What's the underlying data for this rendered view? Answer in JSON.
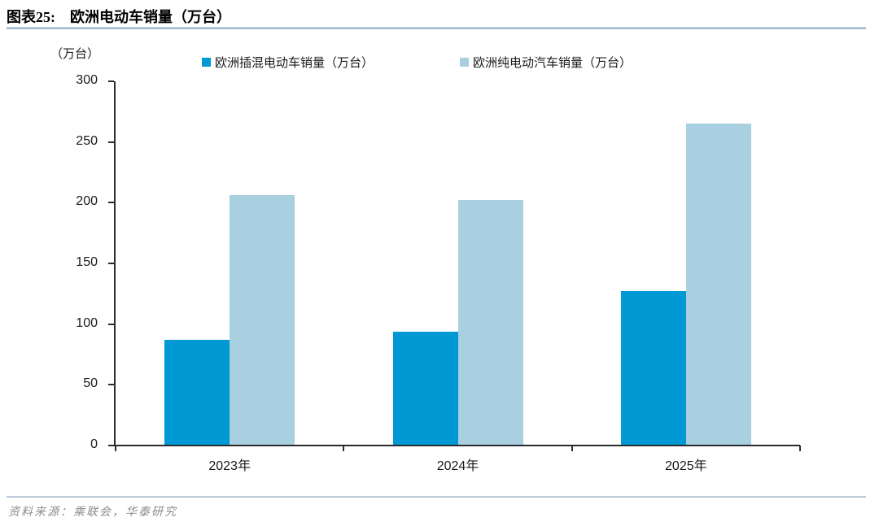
{
  "figure": {
    "label": "图表25:",
    "title": "欧洲电动车销量（万台）",
    "source": "资料来源：乘联会，华泰研究"
  },
  "chart_data": {
    "type": "bar",
    "title": "欧洲电动车销量（万台）",
    "categories": [
      "2023年",
      "2024年",
      "2025年"
    ],
    "series": [
      {
        "name": "欧洲插混电动车销量（万台）",
        "color": "#0099d3",
        "values": [
          87,
          94,
          127
        ]
      },
      {
        "name": "欧洲纯电动汽车销量（万台）",
        "color": "#a9d0e0",
        "values": [
          206,
          202,
          265
        ]
      }
    ],
    "xlabel": "",
    "ylabel": "（万台）",
    "ylim": [
      0,
      300
    ],
    "ytick_step": 50,
    "grid": false,
    "legend_position": "top"
  }
}
